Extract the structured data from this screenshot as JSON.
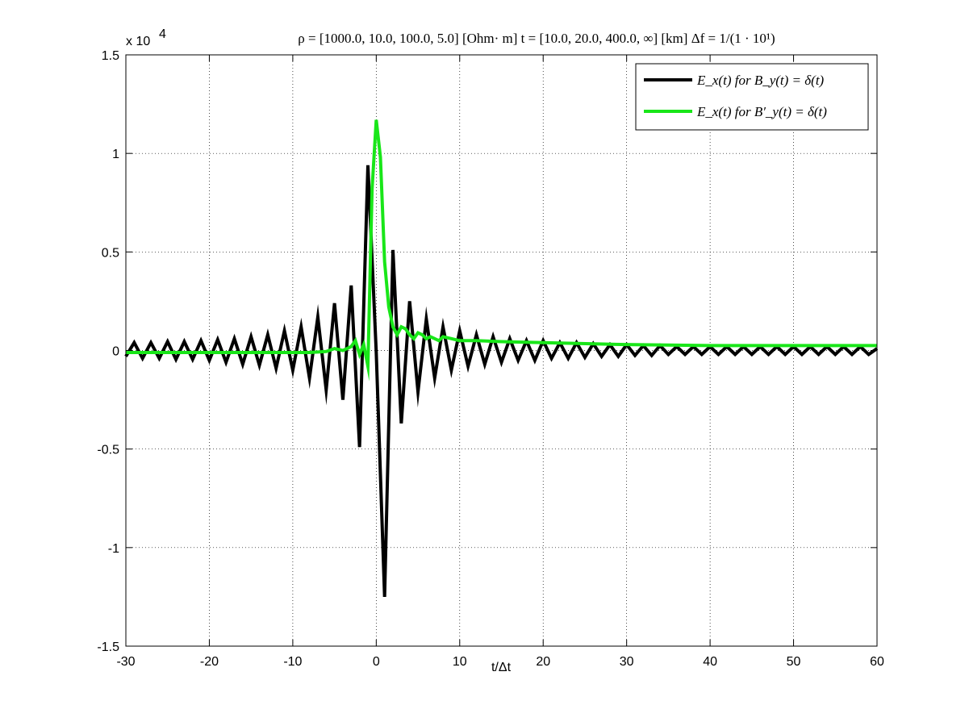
{
  "chart_data": {
    "type": "line",
    "title": "ρ = [1000.0, 10.0, 100.0, 5.0] [Ohm· m]   t = [10.0, 20.0, 400.0, ∞] [km]   Δf = 1/(1 · 10¹)",
    "xlabel": "t/Δt",
    "ylabel": "",
    "y_multiplier_label": "x 10",
    "y_multiplier_exp": "4",
    "xlim": [
      -30,
      60
    ],
    "ylim": [
      -1.5,
      1.5
    ],
    "xticks": [
      -30,
      -20,
      -10,
      0,
      10,
      20,
      30,
      40,
      50,
      60
    ],
    "yticks": [
      -1.5,
      -1,
      -0.5,
      0,
      0.5,
      1,
      1.5
    ],
    "xtick_labels": [
      "-30",
      "-20",
      "-10",
      "0",
      "10",
      "20",
      "30",
      "40",
      "50",
      "60"
    ],
    "ytick_labels": [
      "-1.5",
      "-1",
      "-0.5",
      "0",
      "0.5",
      "1",
      "1.5"
    ],
    "grid": true,
    "legend_position": "top-right",
    "series": [
      {
        "name": "E_x(t) for B_y(t) = δ(t)",
        "color": "#000000",
        "x": [
          -30,
          -29,
          -28,
          -27,
          -26,
          -25,
          -24,
          -23,
          -22,
          -21,
          -20,
          -19,
          -18,
          -17,
          -16,
          -15,
          -14,
          -13,
          -12,
          -11,
          -10,
          -9,
          -8,
          -7,
          -6,
          -5,
          -4,
          -3,
          -2,
          -1,
          0,
          1,
          2,
          3,
          4,
          5,
          6,
          7,
          8,
          9,
          10,
          11,
          12,
          13,
          14,
          15,
          16,
          17,
          18,
          19,
          20,
          21,
          22,
          23,
          24,
          25,
          26,
          27,
          28,
          29,
          30,
          31,
          32,
          33,
          34,
          35,
          36,
          37,
          38,
          39,
          40,
          41,
          42,
          43,
          44,
          45,
          46,
          47,
          48,
          49,
          50,
          51,
          52,
          53,
          54,
          55,
          56,
          57,
          58,
          59,
          60
        ],
        "values": [
          -0.03,
          0.04,
          -0.04,
          0.04,
          -0.04,
          0.045,
          -0.045,
          0.045,
          -0.045,
          0.05,
          -0.05,
          0.055,
          -0.06,
          0.06,
          -0.07,
          0.07,
          -0.075,
          0.08,
          -0.09,
          0.1,
          -0.1,
          0.12,
          -0.14,
          0.17,
          -0.2,
          0.24,
          -0.25,
          0.33,
          -0.49,
          0.94,
          -0.01,
          -1.25,
          0.51,
          -0.37,
          0.25,
          -0.21,
          0.16,
          -0.14,
          0.12,
          -0.1,
          0.1,
          -0.08,
          0.08,
          -0.07,
          0.07,
          -0.06,
          0.06,
          -0.05,
          0.05,
          -0.05,
          0.05,
          -0.04,
          0.04,
          -0.04,
          0.04,
          -0.035,
          0.035,
          -0.03,
          0.03,
          -0.03,
          0.03,
          -0.025,
          0.025,
          -0.025,
          0.025,
          -0.02,
          0.02,
          -0.02,
          0.02,
          -0.02,
          0.02,
          -0.02,
          0.02,
          -0.02,
          0.02,
          -0.02,
          0.02,
          -0.02,
          0.02,
          -0.02,
          0.02,
          -0.02,
          0.02,
          -0.02,
          0.02,
          -0.02,
          0.02,
          -0.02,
          0.02,
          -0.02,
          0.01
        ]
      },
      {
        "name": "E_x(t) for B′_y(t) = δ(t)",
        "color": "#19e619",
        "x": [
          -30,
          -25,
          -20,
          -15,
          -10,
          -8,
          -6,
          -5,
          -4,
          -3,
          -2.5,
          -2,
          -1.5,
          -1,
          -0.5,
          0,
          0.5,
          1,
          1.5,
          2,
          2.5,
          3,
          3.5,
          4,
          4.5,
          5,
          5.5,
          6,
          6.5,
          7,
          7.5,
          8,
          9,
          10,
          12,
          15,
          20,
          30,
          40,
          50,
          60
        ],
        "values": [
          -0.01,
          -0.01,
          -0.01,
          -0.01,
          -0.01,
          -0.01,
          -0.005,
          0.01,
          0.0,
          0.02,
          0.05,
          -0.02,
          0.03,
          -0.08,
          0.82,
          1.17,
          0.98,
          0.45,
          0.22,
          0.12,
          0.08,
          0.12,
          0.11,
          0.08,
          0.06,
          0.09,
          0.08,
          0.06,
          0.07,
          0.06,
          0.05,
          0.07,
          0.06,
          0.05,
          0.05,
          0.045,
          0.04,
          0.03,
          0.025,
          0.025,
          0.025
        ]
      }
    ]
  }
}
